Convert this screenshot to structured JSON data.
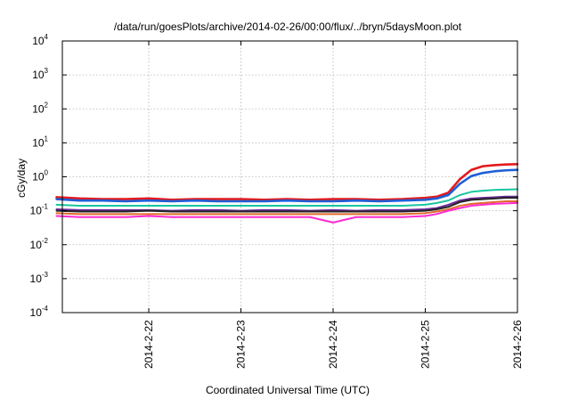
{
  "chart_data": {
    "type": "line",
    "title": "/data/run/goesPlots/archive/2014-02-26/00:00/flux/../bryn/5daysMoon.plot",
    "xlabel": "Coordinated Universal Time (UTC)",
    "ylabel": "cGy/day",
    "x_tick_labels": [
      "2014-2-22",
      "2014-2-23",
      "2014-2-24",
      "2014-2-25",
      "2014-2-26"
    ],
    "y_scale": "log",
    "ylim": [
      0.0001,
      10000
    ],
    "y_tick_labels": [
      {
        "base": "10",
        "exp": "-4"
      },
      {
        "base": "10",
        "exp": "-3"
      },
      {
        "base": "10",
        "exp": "-2"
      },
      {
        "base": "10",
        "exp": "-1"
      },
      {
        "base": "10",
        "exp": "0"
      },
      {
        "base": "10",
        "exp": "1"
      },
      {
        "base": "10",
        "exp": "2"
      },
      {
        "base": "10",
        "exp": "3"
      },
      {
        "base": "10",
        "exp": "4"
      }
    ],
    "x": [
      "2014-02-21T00:00",
      "2014-02-21T06:00",
      "2014-02-21T12:00",
      "2014-02-21T18:00",
      "2014-02-22T00:00",
      "2014-02-22T06:00",
      "2014-02-22T12:00",
      "2014-02-22T18:00",
      "2014-02-23T00:00",
      "2014-02-23T06:00",
      "2014-02-23T12:00",
      "2014-02-23T18:00",
      "2014-02-24T00:00",
      "2014-02-24T06:00",
      "2014-02-24T12:00",
      "2014-02-24T18:00",
      "2014-02-25T00:00",
      "2014-02-25T03:00",
      "2014-02-25T06:00",
      "2014-02-25T09:00",
      "2014-02-25T12:00",
      "2014-02-25T15:00",
      "2014-02-25T18:00",
      "2014-02-25T21:00",
      "2014-02-26T00:00"
    ],
    "grid": true,
    "series": [
      {
        "color": "#e41a1c",
        "values": [
          0.25,
          0.23,
          0.22,
          0.22,
          0.23,
          0.21,
          0.22,
          0.22,
          0.22,
          0.21,
          0.22,
          0.21,
          0.22,
          0.22,
          0.21,
          0.22,
          0.24,
          0.26,
          0.34,
          0.85,
          1.6,
          2.05,
          2.2,
          2.3,
          2.35
        ]
      },
      {
        "color": "#1f5fd6",
        "values": [
          0.22,
          0.2,
          0.2,
          0.19,
          0.2,
          0.19,
          0.2,
          0.19,
          0.19,
          0.19,
          0.2,
          0.19,
          0.19,
          0.2,
          0.19,
          0.2,
          0.21,
          0.23,
          0.29,
          0.62,
          1.05,
          1.3,
          1.45,
          1.55,
          1.6
        ]
      },
      {
        "color": "#19c6a0",
        "values": [
          0.15,
          0.14,
          0.14,
          0.14,
          0.14,
          0.14,
          0.14,
          0.14,
          0.14,
          0.14,
          0.14,
          0.14,
          0.14,
          0.14,
          0.14,
          0.14,
          0.15,
          0.17,
          0.2,
          0.29,
          0.36,
          0.39,
          0.41,
          0.42,
          0.43
        ]
      },
      {
        "color": "#6a2a9a",
        "values": [
          0.11,
          0.105,
          0.105,
          0.105,
          0.105,
          0.1,
          0.105,
          0.105,
          0.1,
          0.105,
          0.105,
          0.1,
          0.105,
          0.1,
          0.105,
          0.105,
          0.11,
          0.12,
          0.15,
          0.2,
          0.23,
          0.24,
          0.25,
          0.26,
          0.26
        ]
      },
      {
        "color": "#222222",
        "values": [
          0.1,
          0.095,
          0.095,
          0.095,
          0.1,
          0.095,
          0.095,
          0.095,
          0.095,
          0.095,
          0.095,
          0.095,
          0.095,
          0.095,
          0.095,
          0.095,
          0.1,
          0.11,
          0.13,
          0.18,
          0.21,
          0.22,
          0.23,
          0.24,
          0.24
        ]
      },
      {
        "color": "#e06b2c",
        "values": [
          0.085,
          0.08,
          0.08,
          0.08,
          0.08,
          0.08,
          0.08,
          0.08,
          0.08,
          0.08,
          0.08,
          0.08,
          0.08,
          0.08,
          0.08,
          0.08,
          0.085,
          0.095,
          0.11,
          0.14,
          0.16,
          0.17,
          0.18,
          0.19,
          0.19
        ]
      },
      {
        "color": "#ff2ad4",
        "values": [
          0.07,
          0.065,
          0.065,
          0.065,
          0.07,
          0.065,
          0.065,
          0.065,
          0.065,
          0.065,
          0.065,
          0.065,
          0.045,
          0.065,
          0.065,
          0.065,
          0.07,
          0.08,
          0.1,
          0.12,
          0.14,
          0.15,
          0.16,
          0.165,
          0.17
        ]
      }
    ]
  }
}
